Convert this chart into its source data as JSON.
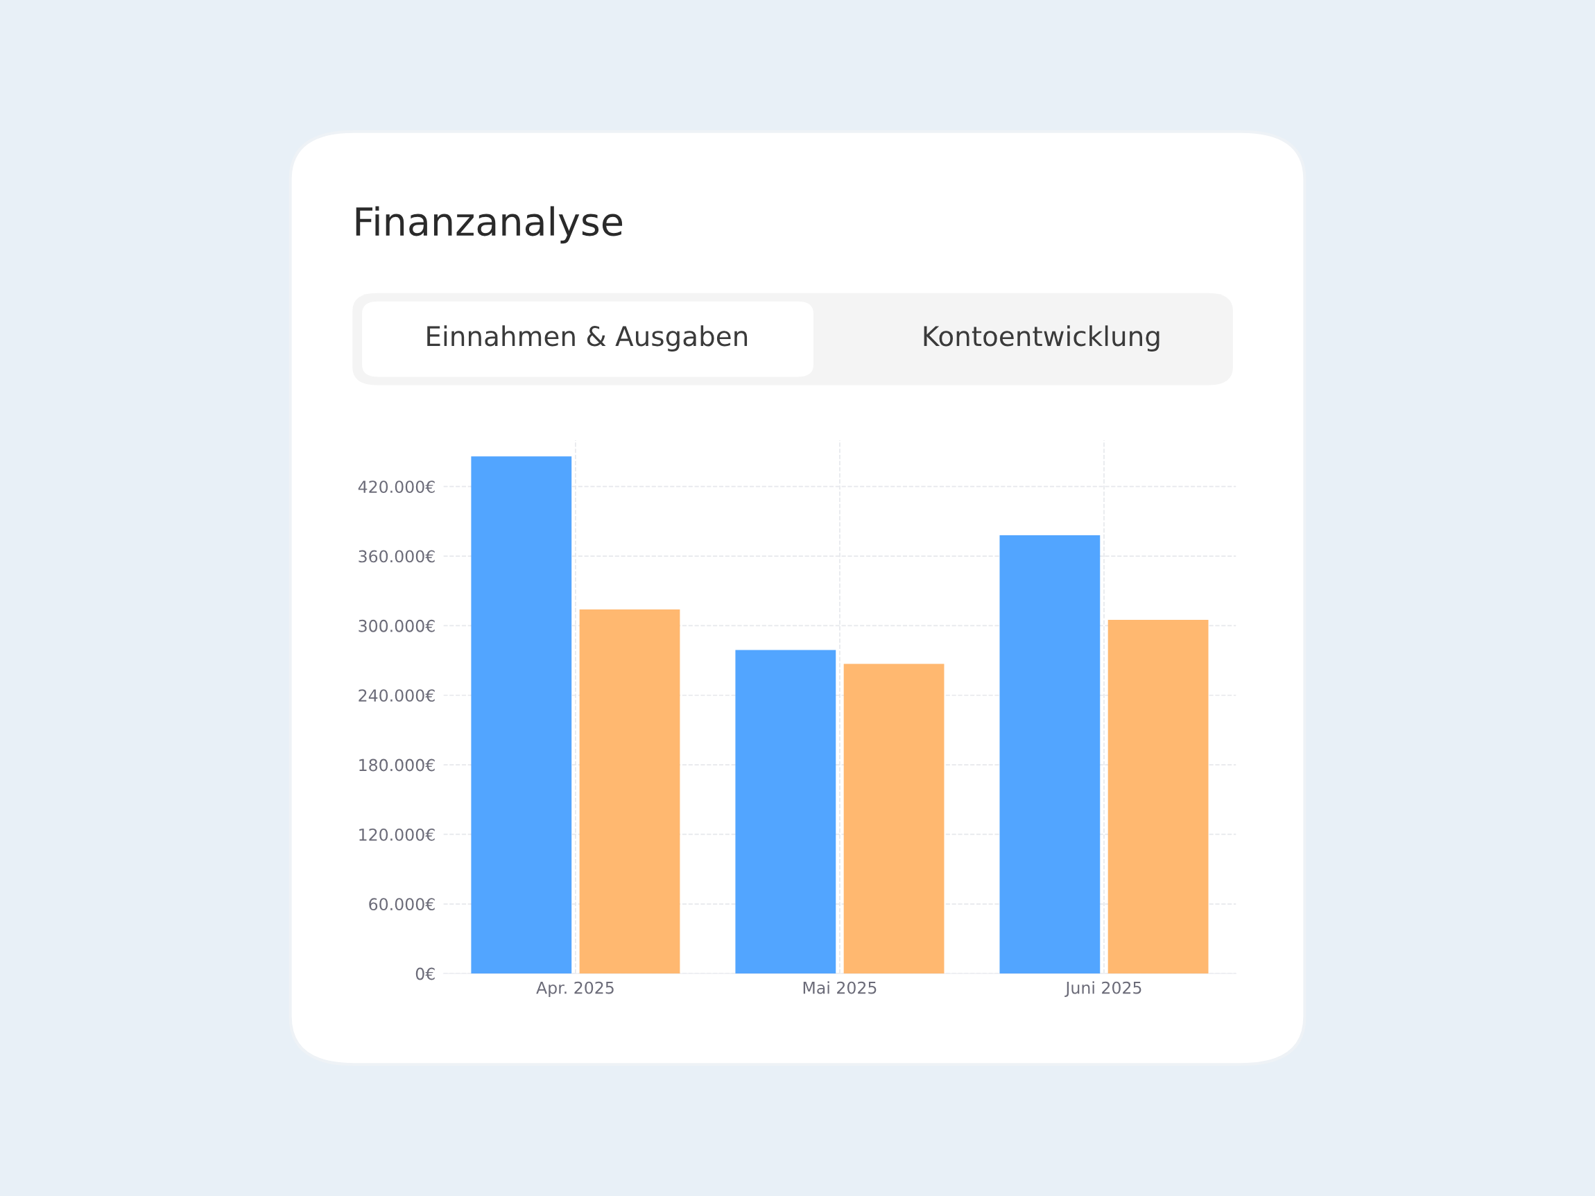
{
  "chart_data": {
    "type": "bar",
    "title": "Finanzanalyse",
    "annotations": [
      "Einnahmen & Ausgaben",
      "Kontoentwicklung"
    ],
    "categories": [
      "Apr. 2025",
      "Mai 2025",
      "Juni 2025"
    ],
    "series": [
      {
        "color": "#52a5ff",
        "values": [
          446000,
          279000,
          378000
        ]
      },
      {
        "color": "#ffb870",
        "values": [
          314000,
          267000,
          305000
        ]
      }
    ],
    "ylim": [
      0,
      460000
    ],
    "yticks": [
      {
        "value": 0,
        "label": "0€"
      },
      {
        "value": 60000,
        "label": "60.000€"
      },
      {
        "value": 120000,
        "label": "120.000€"
      },
      {
        "value": 180000,
        "label": "180.000€"
      },
      {
        "value": 240000,
        "label": "240.000€"
      },
      {
        "value": 300000,
        "label": "300.000€"
      },
      {
        "value": 360000,
        "label": "360.000€"
      },
      {
        "value": 420000,
        "label": "420.000€"
      }
    ],
    "grid": true,
    "legend": false
  }
}
